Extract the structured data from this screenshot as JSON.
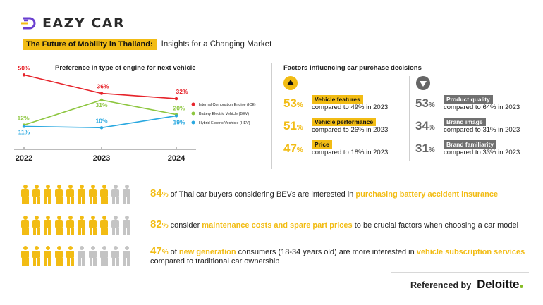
{
  "brand": {
    "name": "EAZY CAR",
    "accent": "#f2bc14"
  },
  "headline": {
    "highlight": "The Future of Mobility in Thailand:",
    "rest": "Insights for a Changing Market"
  },
  "chart_data": {
    "type": "line",
    "title": "Preference in type of engine for next vehicle",
    "x": [
      "2022",
      "2023",
      "2024"
    ],
    "ylim": [
      0,
      55
    ],
    "grid": false,
    "legend_position": "right",
    "series": [
      {
        "name": "Internal Combustion Engine (ICE)",
        "color": "#e6232a",
        "values": [
          50,
          36,
          32
        ],
        "labels": [
          "50%",
          "36%",
          "32%"
        ]
      },
      {
        "name": "Battery Electric Vehicle (BEV)",
        "color": "#8dc63f",
        "values": [
          12,
          31,
          20
        ],
        "labels": [
          "12%",
          "31%",
          "20%"
        ]
      },
      {
        "name": "Hybrid Electric Vechicle (HEV)",
        "color": "#29a8e0",
        "values": [
          11,
          10,
          19
        ],
        "labels": [
          "11%",
          "10%",
          "19%"
        ]
      }
    ]
  },
  "factors": {
    "title": "Factors influencing car purchase decisions",
    "up": [
      {
        "pct": "53",
        "unit": "%",
        "label": "Vehicle features",
        "compare": "compared to 49% in 2023"
      },
      {
        "pct": "51",
        "unit": "%",
        "label": "Vehicle performance",
        "compare": "compared to 26% in 2023"
      },
      {
        "pct": "47",
        "unit": "%",
        "label": "Price",
        "compare": "compared to 18% in 2023"
      }
    ],
    "down": [
      {
        "pct": "53",
        "unit": "%",
        "label": "Product quality",
        "compare": "compared to 64% in 2023"
      },
      {
        "pct": "34",
        "unit": "%",
        "label": "Brand image",
        "compare": "compared to 31% in 2023"
      },
      {
        "pct": "31",
        "unit": "%",
        "label": "Brand familiarity",
        "compare": "compared to 33% in 2023"
      }
    ]
  },
  "stats": [
    {
      "pct": "84",
      "unit": "%",
      "filled": 8,
      "total": 10,
      "t1": " of Thai car buyers considering BEVs are interested in ",
      "h1": "purchasing battery accident insurance"
    },
    {
      "pct": "82",
      "unit": "%",
      "filled": 8,
      "total": 10,
      "t1": " consider ",
      "h1": "maintenance costs and spare part prices",
      "t2": " to be crucial factors when choosing a car model"
    },
    {
      "pct": "47",
      "unit": "%",
      "filled": 5,
      "total": 10,
      "t1": " of ",
      "h1": "new generation",
      "t2": " consumers (18-34 years old) are more interested in ",
      "h2": "vehicle subscription services",
      "t3": "compared to traditional car ownership"
    }
  ],
  "reference": {
    "label": "Referenced by",
    "brand": "Deloitte"
  }
}
